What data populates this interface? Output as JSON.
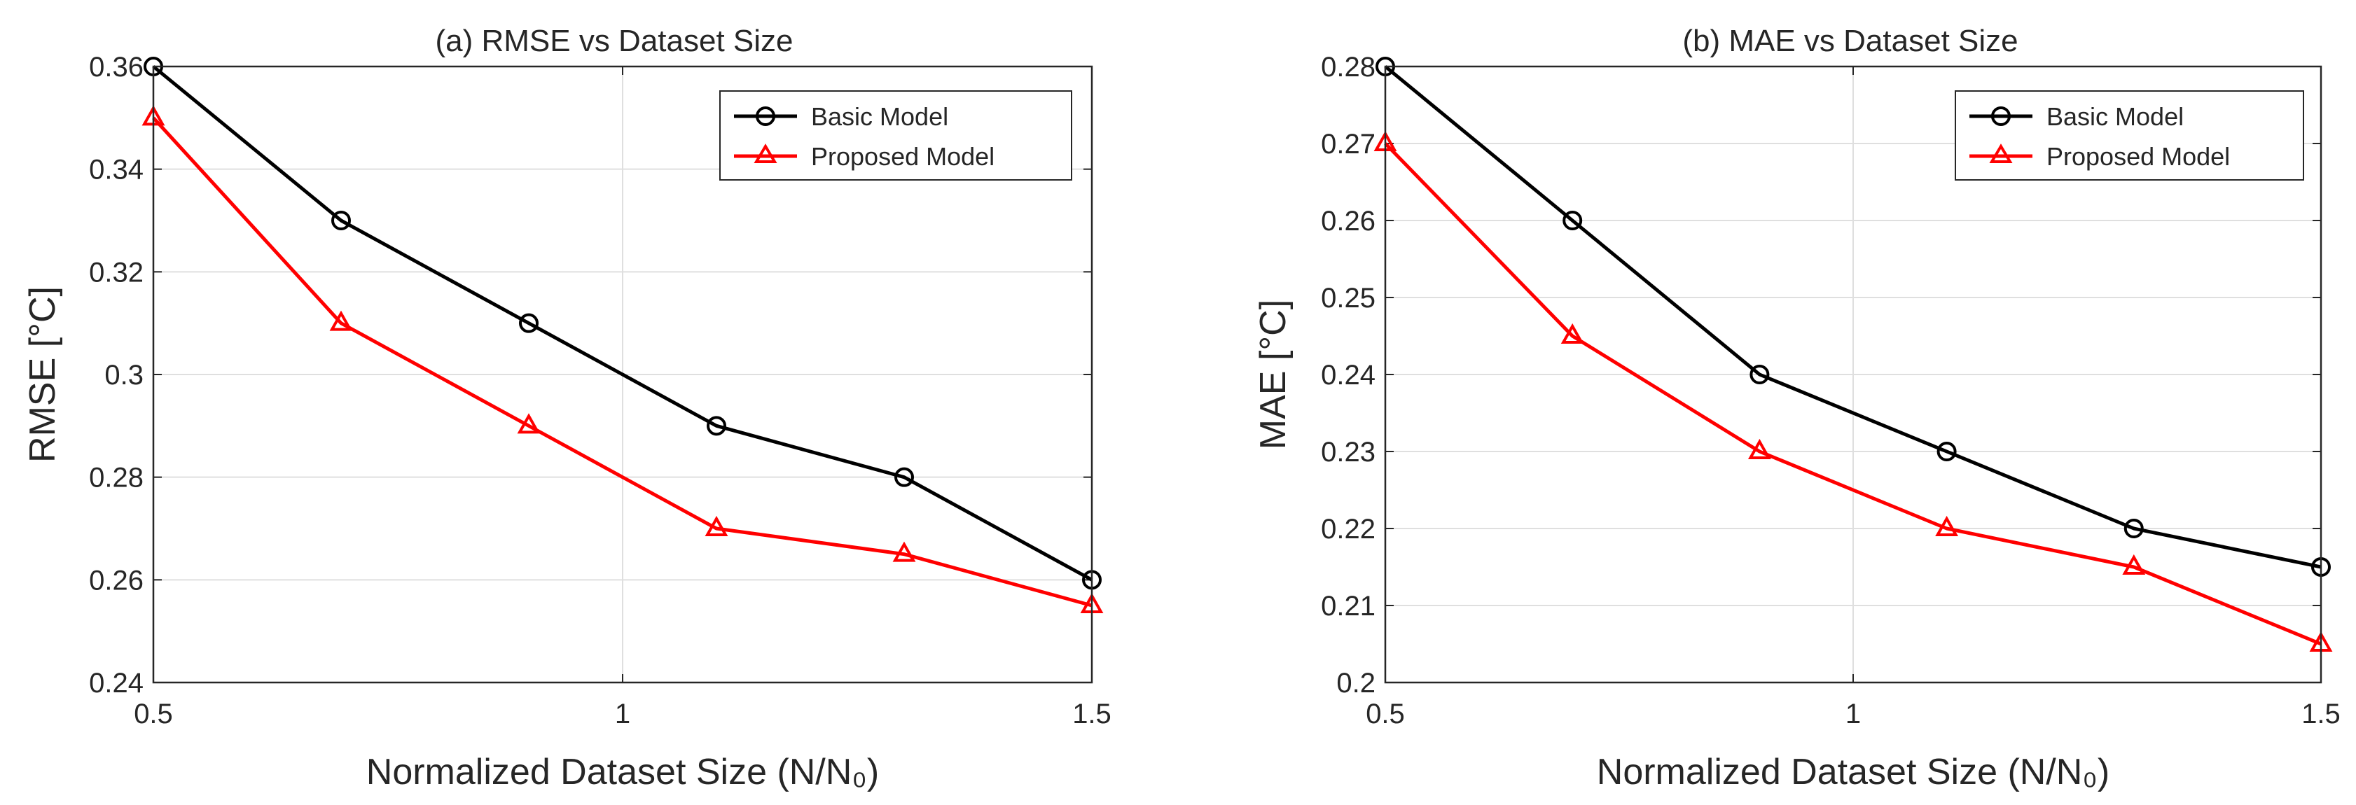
{
  "figure": {
    "colors": {
      "basic": "#000000",
      "proposed": "#ff0000",
      "grid": "#dfdfdf",
      "axis": "#262626"
    }
  },
  "chart_data": [
    {
      "type": "line",
      "title": "(a) RMSE vs Dataset Size",
      "xlabel": "Normalized Dataset Size (N/N₀)",
      "ylabel": "RMSE [°C]",
      "xlim": [
        0.5,
        1.5
      ],
      "ylim": [
        0.24,
        0.36
      ],
      "xticks": [
        0.5,
        1,
        1.5
      ],
      "xtick_labels": [
        "0.5",
        "1",
        "1.5"
      ],
      "yticks": [
        0.24,
        0.26,
        0.28,
        0.3,
        0.32,
        0.34,
        0.36
      ],
      "ytick_labels": [
        "0.24",
        "0.26",
        "0.28",
        "0.3",
        "0.32",
        "0.34",
        "0.36"
      ],
      "grid": true,
      "legend_position": "top-right",
      "x": [
        0.5,
        0.7,
        0.9,
        1.1,
        1.3,
        1.5
      ],
      "series": [
        {
          "name": "Basic Model",
          "color": "#000000",
          "marker": "circle",
          "values": [
            0.36,
            0.33,
            0.31,
            0.29,
            0.28,
            0.26
          ]
        },
        {
          "name": "Proposed Model",
          "color": "#ff0000",
          "marker": "triangle",
          "values": [
            0.35,
            0.31,
            0.29,
            0.27,
            0.265,
            0.255
          ]
        }
      ]
    },
    {
      "type": "line",
      "title": "(b) MAE vs Dataset Size",
      "xlabel": "Normalized Dataset Size (N/N₀)",
      "ylabel": "MAE [°C]",
      "xlim": [
        0.5,
        1.5
      ],
      "ylim": [
        0.2,
        0.28
      ],
      "xticks": [
        0.5,
        1,
        1.5
      ],
      "xtick_labels": [
        "0.5",
        "1",
        "1.5"
      ],
      "yticks": [
        0.2,
        0.21,
        0.22,
        0.23,
        0.24,
        0.25,
        0.26,
        0.27,
        0.28
      ],
      "ytick_labels": [
        "0.2",
        "0.21",
        "0.22",
        "0.23",
        "0.24",
        "0.25",
        "0.26",
        "0.27",
        "0.28"
      ],
      "grid": true,
      "legend_position": "top-right",
      "x": [
        0.5,
        0.7,
        0.9,
        1.1,
        1.3,
        1.5
      ],
      "series": [
        {
          "name": "Basic Model",
          "color": "#000000",
          "marker": "circle",
          "values": [
            0.28,
            0.26,
            0.24,
            0.23,
            0.22,
            0.215
          ]
        },
        {
          "name": "Proposed Model",
          "color": "#ff0000",
          "marker": "triangle",
          "values": [
            0.27,
            0.245,
            0.23,
            0.22,
            0.215,
            0.205
          ]
        }
      ]
    }
  ]
}
